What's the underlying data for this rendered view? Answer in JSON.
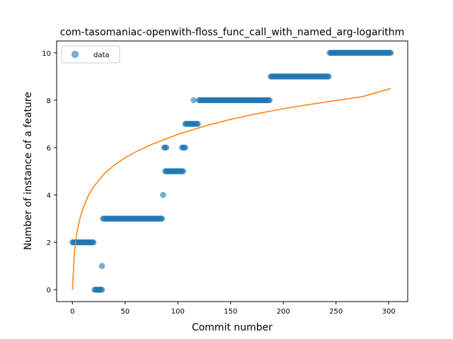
{
  "chart_data": {
    "type": "scatter",
    "title": "com-tasomaniac-openwith-floss_func_call_with_named_arg-logarithm",
    "xlabel": "Commit number",
    "ylabel": "Number of instance of a feature",
    "xlim": [
      -15,
      318
    ],
    "ylim": [
      -0.5,
      10.5
    ],
    "xticks": [
      0,
      50,
      100,
      150,
      200,
      250,
      300
    ],
    "yticks": [
      0,
      2,
      4,
      6,
      8,
      10
    ],
    "grid": false,
    "legend": {
      "position": "top-left",
      "entries": [
        {
          "label": "data",
          "marker": "circle"
        }
      ]
    },
    "colors": {
      "data": "#1f77b4",
      "fit": "#ff7f0e"
    },
    "series": [
      {
        "name": "data",
        "kind": "scatter",
        "segments": [
          {
            "x_start": 0,
            "x_end": 20,
            "y": 2
          },
          {
            "x_start": 21,
            "x_end": 28,
            "y": 0
          },
          {
            "x_start": 28,
            "x_end": 28,
            "y": 1
          },
          {
            "x_start": 29,
            "x_end": 85,
            "y": 3
          },
          {
            "x_start": 86,
            "x_end": 86,
            "y": 4
          },
          {
            "x_start": 87,
            "x_end": 89,
            "y": 6
          },
          {
            "x_start": 88,
            "x_end": 105,
            "y": 5
          },
          {
            "x_start": 104,
            "x_end": 107,
            "y": 6
          },
          {
            "x_start": 107,
            "x_end": 119,
            "y": 7
          },
          {
            "x_start": 115,
            "x_end": 115,
            "y": 8
          },
          {
            "x_start": 120,
            "x_end": 187,
            "y": 8
          },
          {
            "x_start": 188,
            "x_end": 243,
            "y": 9
          },
          {
            "x_start": 244,
            "x_end": 302,
            "y": 10
          }
        ]
      },
      {
        "name": "fit",
        "kind": "line",
        "x": [
          0,
          2,
          4,
          6,
          8,
          10,
          15,
          20,
          30,
          40,
          50,
          60,
          75,
          100,
          125,
          150,
          175,
          200,
          225,
          250,
          275,
          302
        ],
        "y": [
          0.0,
          1.63,
          2.35,
          2.81,
          3.15,
          3.43,
          3.96,
          4.34,
          4.89,
          5.27,
          5.57,
          5.82,
          6.13,
          6.56,
          6.9,
          7.19,
          7.43,
          7.64,
          7.82,
          7.99,
          8.15,
          8.49
        ]
      }
    ]
  }
}
